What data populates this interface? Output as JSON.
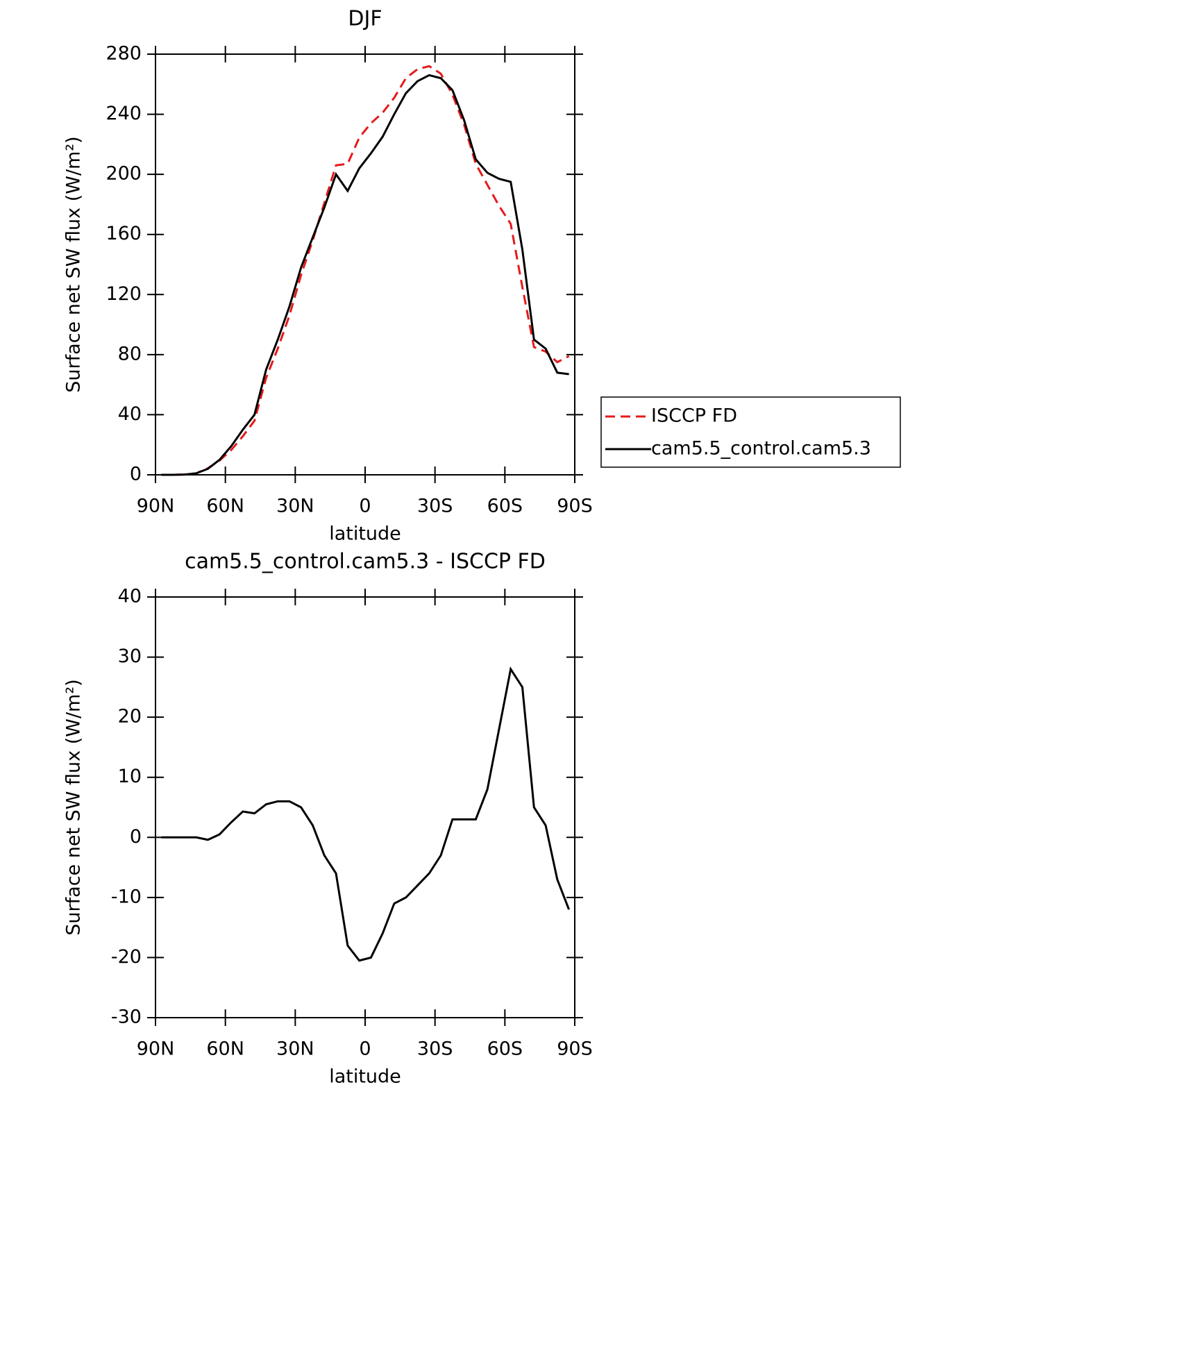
{
  "chart_data": [
    {
      "type": "line",
      "title": "DJF",
      "xlabel": "latitude",
      "ylabel": "Surface net SW flux (W/m²)",
      "x": [
        87.5,
        82.5,
        77.5,
        72.5,
        67.5,
        62.5,
        57.5,
        52.5,
        47.5,
        42.5,
        37.5,
        32.5,
        27.5,
        22.5,
        17.5,
        12.5,
        7.5,
        2.5,
        -2.5,
        -7.5,
        -12.5,
        -17.5,
        -22.5,
        -27.5,
        -32.5,
        -37.5,
        -42.5,
        -47.5,
        -52.5,
        -57.5,
        -62.5,
        -67.5,
        -72.5,
        -77.5,
        -82.5,
        -87.5
      ],
      "series": [
        {
          "name": "ISCCP FD",
          "color": "#e41a1c",
          "line_style": "dashed",
          "values": [
            0,
            0,
            0.2,
            1,
            4.4,
            9.5,
            16.5,
            25.7,
            36,
            64.5,
            84,
            106,
            133,
            156,
            181,
            206,
            207,
            224.5,
            234,
            241,
            251,
            264,
            270,
            272,
            267,
            253,
            233,
            207,
            193,
            179,
            167,
            125,
            85,
            82,
            75,
            79
          ]
        },
        {
          "name": "cam5.5_control.cam5.3",
          "color": "#000000",
          "line_style": "solid",
          "values": [
            0,
            0,
            0.2,
            1,
            4,
            10,
            19,
            30,
            40,
            70,
            90,
            112,
            138,
            158,
            178,
            200,
            189,
            204,
            214,
            225,
            240,
            254,
            262,
            266,
            264,
            256,
            236,
            210,
            201,
            197,
            195,
            150,
            90,
            84,
            68,
            67
          ]
        }
      ],
      "xlim": [
        90,
        -90
      ],
      "xticks": [
        {
          "value": 90,
          "label": "90N"
        },
        {
          "value": 60,
          "label": "60N"
        },
        {
          "value": 30,
          "label": "30N"
        },
        0,
        {
          "value": -30,
          "label": "30S"
        },
        {
          "value": -60,
          "label": "60S"
        },
        {
          "value": -90,
          "label": "90S"
        }
      ],
      "ylim": [
        0,
        280
      ],
      "yticks": [
        0,
        40,
        80,
        120,
        160,
        200,
        240,
        280
      ],
      "legend": "right"
    },
    {
      "type": "line",
      "title": "cam5.5_control.cam5.3 - ISCCP FD",
      "xlabel": "latitude",
      "ylabel": "Surface net SW flux (W/m²)",
      "x": [
        87.5,
        82.5,
        77.5,
        72.5,
        67.5,
        62.5,
        57.5,
        52.5,
        47.5,
        42.5,
        37.5,
        32.5,
        27.5,
        22.5,
        17.5,
        12.5,
        7.5,
        2.5,
        -2.5,
        -7.5,
        -12.5,
        -17.5,
        -22.5,
        -27.5,
        -32.5,
        -37.5,
        -42.5,
        -47.5,
        -52.5,
        -57.5,
        -62.5,
        -67.5,
        -72.5,
        -77.5,
        -82.5,
        -87.5
      ],
      "series": [
        {
          "color": "#000000",
          "line_style": "solid",
          "values": [
            0,
            0,
            0,
            0,
            -0.4,
            0.5,
            2.5,
            4.3,
            4,
            5.5,
            6,
            6,
            5,
            2,
            -3,
            -6,
            -18,
            -20.5,
            -20,
            -16,
            -11,
            -10,
            -8,
            -6,
            -3,
            3,
            3,
            3,
            8,
            18,
            28,
            25,
            5,
            2,
            -7,
            -12
          ]
        }
      ],
      "xlim": [
        90,
        -90
      ],
      "xticks": [
        {
          "value": 90,
          "label": "90N"
        },
        {
          "value": 60,
          "label": "60N"
        },
        {
          "value": 30,
          "label": "30N"
        },
        0,
        {
          "value": -30,
          "label": "30S"
        },
        {
          "value": -60,
          "label": "60S"
        },
        {
          "value": -90,
          "label": "90S"
        }
      ],
      "ylim": [
        -30,
        40
      ],
      "yticks": [
        -30,
        -20,
        -10,
        0,
        10,
        20,
        30,
        40
      ]
    }
  ]
}
